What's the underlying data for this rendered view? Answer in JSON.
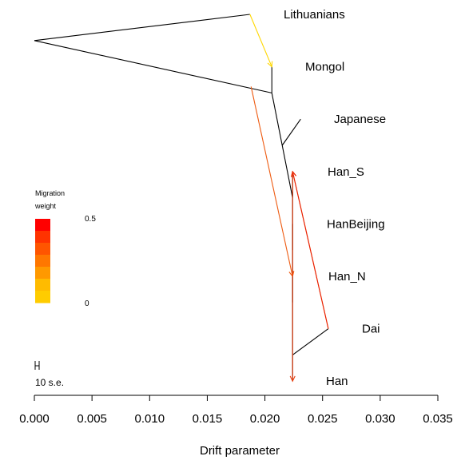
{
  "chart_data": {
    "type": "tree",
    "xlabel": "Drift parameter",
    "xlim": [
      0,
      0.035
    ],
    "x_ticks": [
      "0.000",
      "0.005",
      "0.010",
      "0.015",
      "0.020",
      "0.025",
      "0.030",
      "0.035"
    ],
    "x_tick_values": [
      0,
      0.005,
      0.01,
      0.015,
      0.02,
      0.025,
      0.03,
      0.035
    ],
    "populations": [
      "Lithuanians",
      "Mongol",
      "Japanese",
      "Han_S",
      "HanBeijing",
      "Han_N",
      "Dai",
      "Han"
    ],
    "nodes": [
      {
        "id": "root",
        "x": 0.0,
        "row": 0.5
      },
      {
        "id": "lith",
        "x": 0.0187,
        "row": 0
      },
      {
        "id": "n1",
        "x": 0.0206,
        "row": 1.5
      },
      {
        "id": "mongol",
        "x": 0.0206,
        "row": 1
      },
      {
        "id": "n2",
        "x": 0.0215,
        "row": 2.5
      },
      {
        "id": "japanese",
        "x": 0.0231,
        "row": 2
      },
      {
        "id": "n3",
        "x": 0.0224,
        "row": 3.5
      },
      {
        "id": "hans",
        "x": 0.0224,
        "row": 3
      },
      {
        "id": "n4",
        "x": 0.0224,
        "row": 4.5
      },
      {
        "id": "hanbeijing",
        "x": 0.0224,
        "row": 4
      },
      {
        "id": "n5",
        "x": 0.0224,
        "row": 5.5
      },
      {
        "id": "hann",
        "x": 0.0224,
        "row": 5
      },
      {
        "id": "n6",
        "x": 0.0224,
        "row": 6.5
      },
      {
        "id": "dai",
        "x": 0.0255,
        "row": 6
      },
      {
        "id": "han",
        "x": 0.0224,
        "row": 7
      }
    ],
    "edges": [
      [
        "root",
        "lith"
      ],
      [
        "root",
        "n1"
      ],
      [
        "n1",
        "mongol"
      ],
      [
        "n1",
        "n2"
      ],
      [
        "n2",
        "japanese"
      ],
      [
        "n2",
        "n3"
      ],
      [
        "n3",
        "hans"
      ],
      [
        "n3",
        "n4"
      ],
      [
        "n4",
        "hanbeijing"
      ],
      [
        "n4",
        "n5"
      ],
      [
        "n5",
        "hann"
      ],
      [
        "n5",
        "n6"
      ],
      [
        "n6",
        "dai"
      ],
      [
        "n6",
        "han"
      ]
    ],
    "migrations": [
      {
        "from": "lith",
        "to": "mongol",
        "weight": 0.02,
        "color": "#ffd700"
      },
      {
        "from": "dai",
        "to": "hans",
        "weight": 0.08,
        "color": "#ffc800"
      },
      {
        "from": "dai",
        "to": "hans",
        "weight": 0.45,
        "color": "#e8140a"
      },
      {
        "from": "n1",
        "to": "hann",
        "weight": 0.3,
        "color": "#ee5a10"
      },
      {
        "from": "hans",
        "to": "han",
        "weight": 0.38,
        "color": "#e83c0c"
      }
    ],
    "legend": {
      "title_line1": "Migration",
      "title_line2": "weight",
      "max_label": "0.5",
      "min_label": "0",
      "colors": [
        "#ff0000",
        "#ff3300",
        "#ff5500",
        "#ff7700",
        "#ff9900",
        "#ffbb00",
        "#ffcc00"
      ]
    },
    "scale_label": "10 s.e."
  }
}
